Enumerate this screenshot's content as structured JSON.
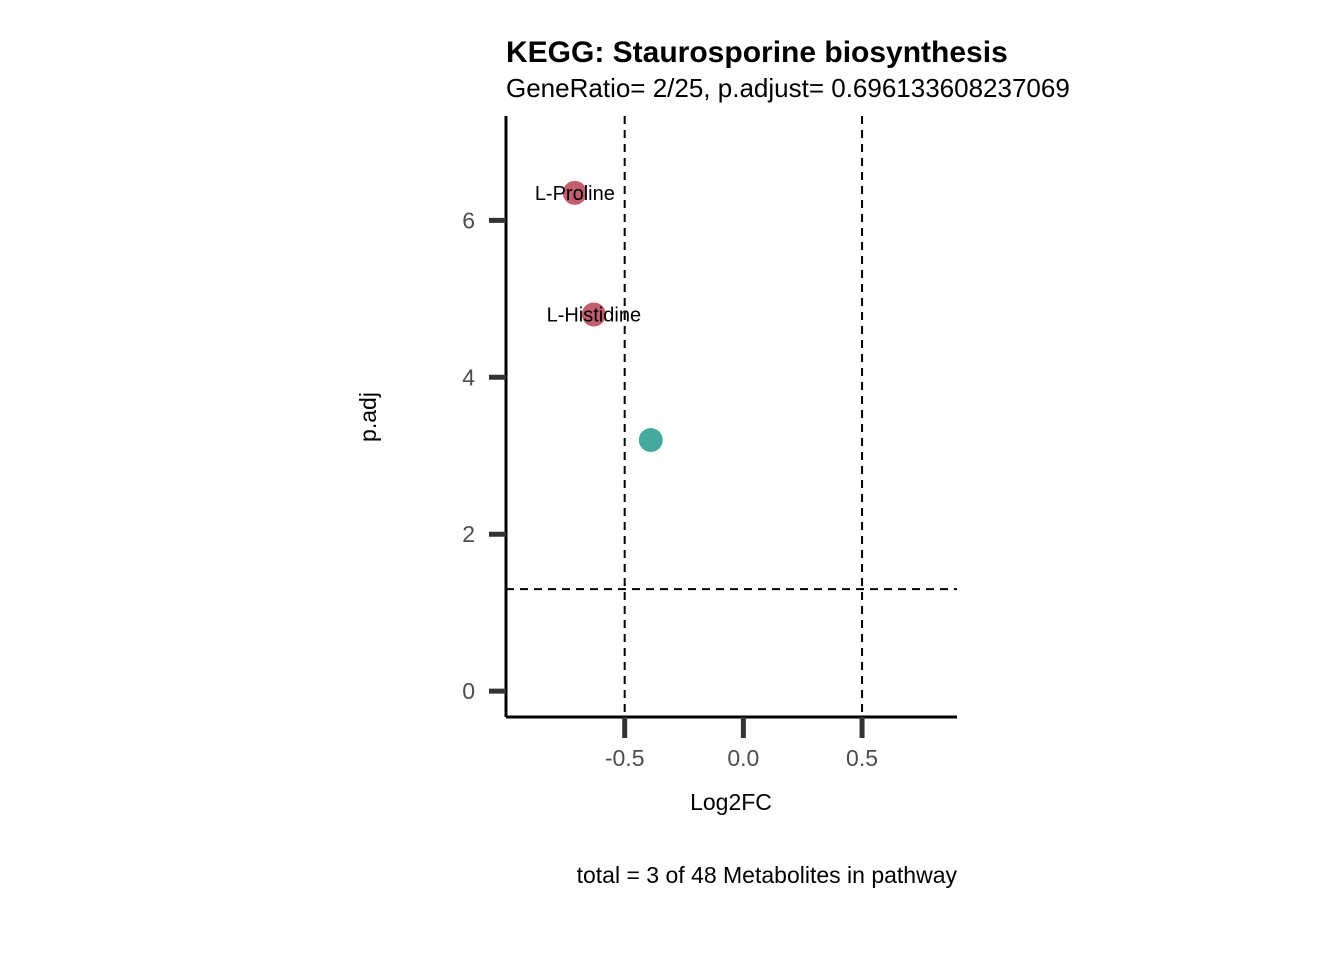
{
  "chart_data": {
    "type": "scatter",
    "title": "KEGG: Staurosporine biosynthesis",
    "subtitle": "GeneRatio= 2/25, p.adjust= 0.696133608237069",
    "xlabel": "Log2FC",
    "ylabel": "p.adj",
    "caption": "total = 3 of 48 Metabolites in pathway",
    "xlim": [
      -1.0,
      0.9
    ],
    "ylim": [
      -0.33,
      7.33
    ],
    "x_ticks": [
      {
        "value": -0.5,
        "label": "-0.5"
      },
      {
        "value": 0.0,
        "label": "0.0"
      },
      {
        "value": 0.5,
        "label": "0.5"
      }
    ],
    "y_ticks": [
      {
        "value": 0,
        "label": "0"
      },
      {
        "value": 2,
        "label": "2"
      },
      {
        "value": 4,
        "label": "4"
      },
      {
        "value": 6,
        "label": "6"
      }
    ],
    "vlines": [
      -0.5,
      0.5
    ],
    "hlines": [
      1.3
    ],
    "grid": false,
    "points": [
      {
        "x": -0.71,
        "y": 6.35,
        "label": "L-Proline",
        "color": "#c25e6e"
      },
      {
        "x": -0.63,
        "y": 4.8,
        "label": "L-Histidine",
        "color": "#c25e6e"
      },
      {
        "x": -0.39,
        "y": 3.2,
        "label": "",
        "color": "#45aa9b"
      }
    ]
  }
}
